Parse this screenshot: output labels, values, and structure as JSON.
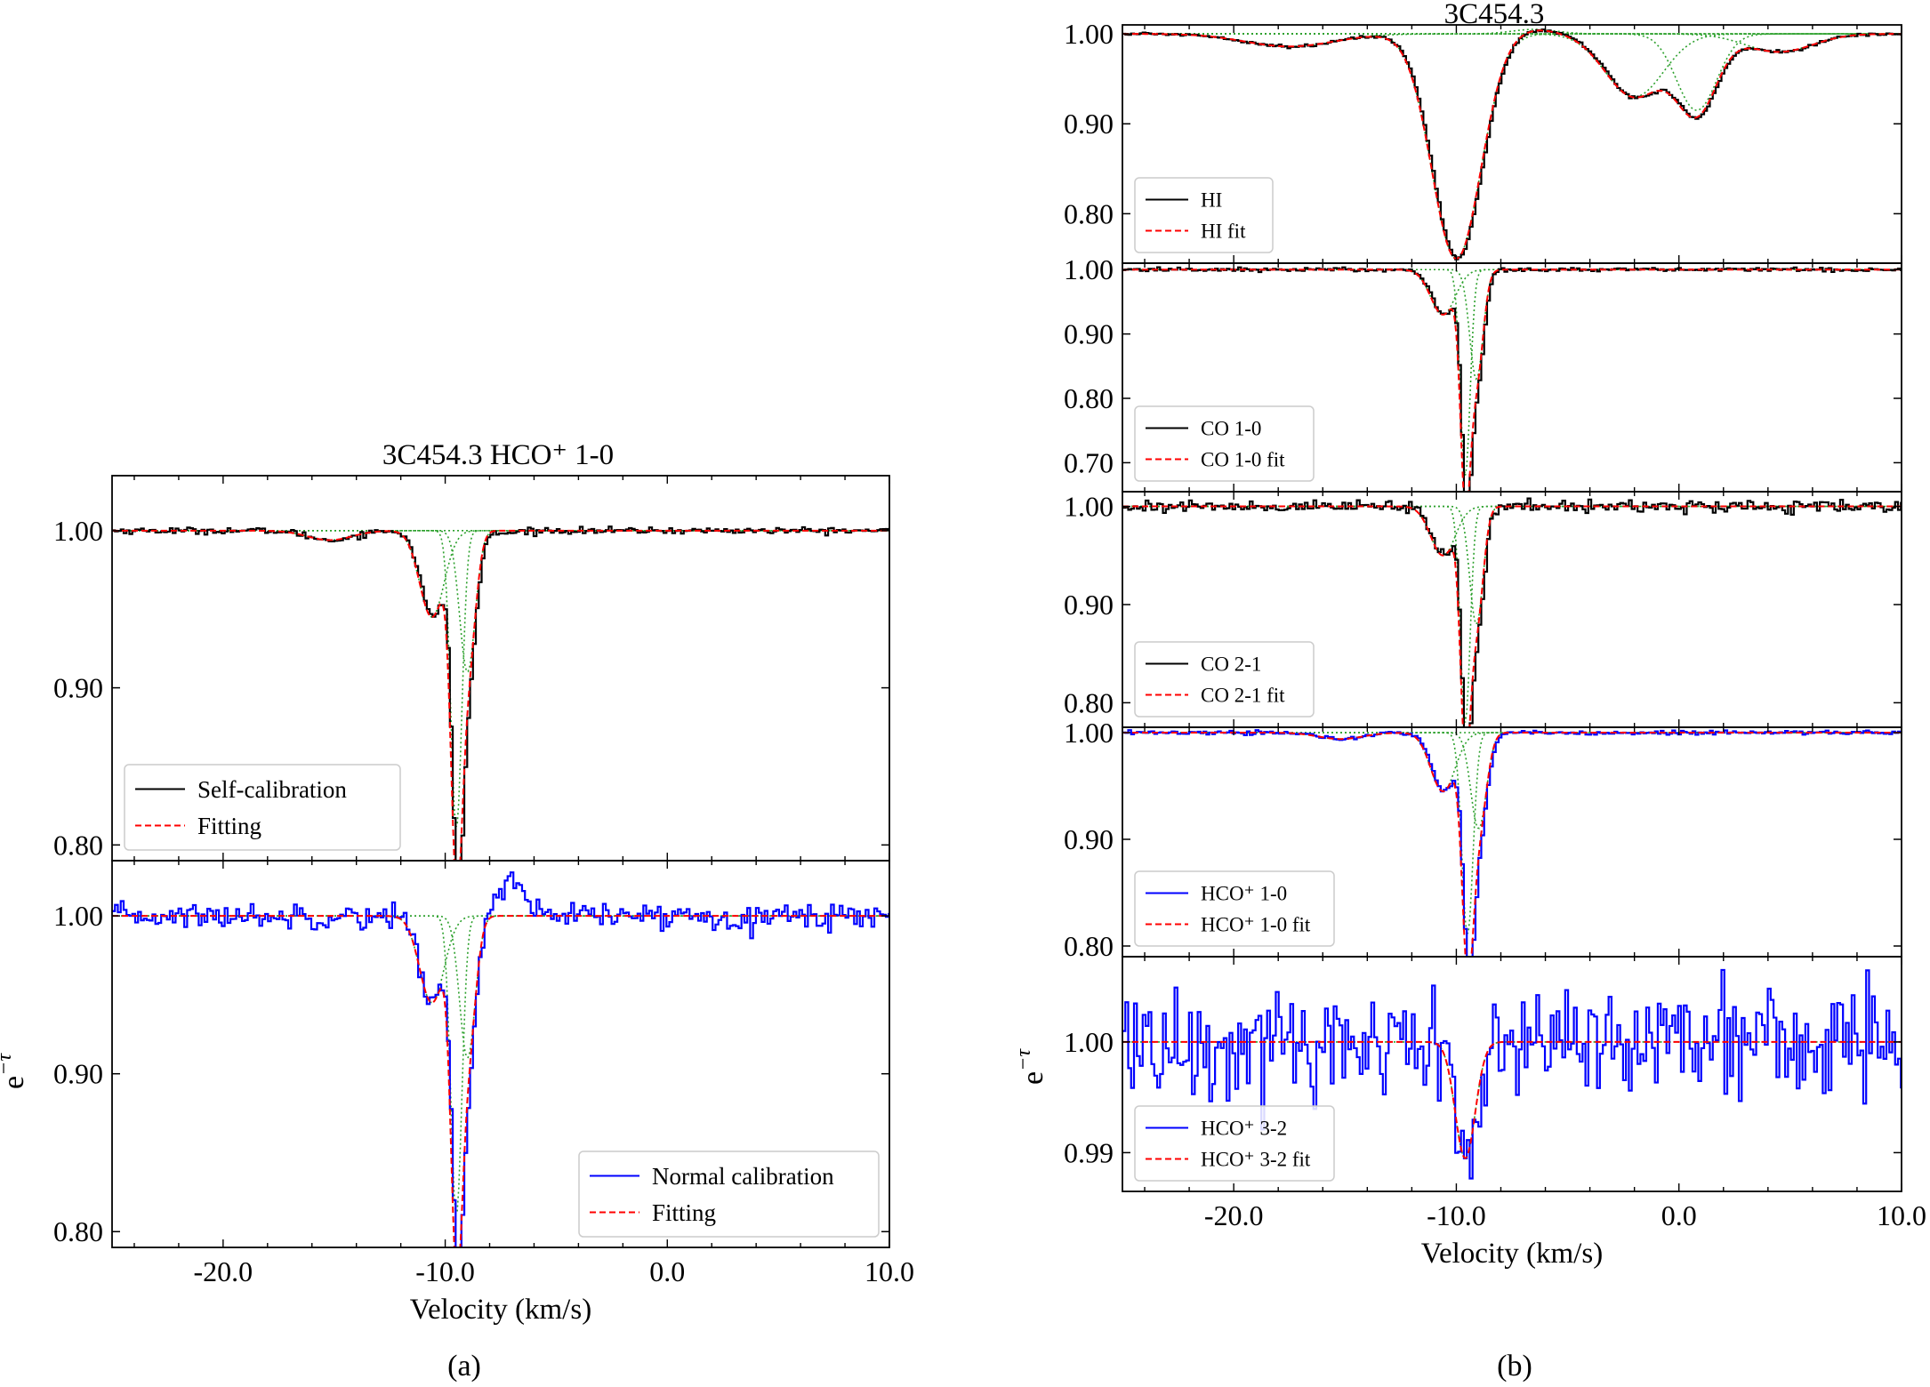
{
  "figure": {
    "panel_a": {
      "title": "3C454.3 HCO⁺ 1-0",
      "caption": "(a)",
      "xlabel": "Velocity (km/s)",
      "ylabel": "e⁻ᵗᵃᵘ",
      "ylabel_base": "e",
      "ylabel_sup": "−τ",
      "xticks": [
        "-20.0",
        "-10.0",
        "0.0",
        "10.0"
      ]
    },
    "panel_b": {
      "title": "3C454.3",
      "caption": "(b)",
      "xlabel": "Velocity (km/s)",
      "ylabel_base": "e",
      "ylabel_sup": "−τ",
      "xticks": [
        "-20.0",
        "-10.0",
        "0.0",
        "10.0"
      ]
    }
  },
  "colors": {
    "data_black": "#000000",
    "data_blue": "#0000ff",
    "fit_red": "#ff0000",
    "component_green": "#2ca02c"
  },
  "chart_data": [
    {
      "type": "line",
      "id": "a_self_cal",
      "xlim": [
        -25,
        10
      ],
      "ylim": [
        0.79,
        1.035
      ],
      "yticks": [
        "0.80",
        "0.90",
        "1.00"
      ],
      "ytick_values": [
        0.8,
        0.9,
        1.0
      ],
      "legend": [
        "Self-calibration",
        "Fitting"
      ],
      "legend_placement": "lower-left",
      "data_style": "steps",
      "data_color": "#000000",
      "components": [
        {
          "center": -15.2,
          "depth": 0.006,
          "sigma": 1.0
        },
        {
          "center": -10.6,
          "depth": 0.055,
          "sigma": 0.55
        },
        {
          "center": -9.5,
          "depth": 0.19,
          "sigma": 0.25
        },
        {
          "center": -9.0,
          "depth": 0.09,
          "sigma": 0.35
        }
      ],
      "noise": 0.001,
      "features": [
        {
          "center": -7.5,
          "amp": -0.002,
          "sigma": 0.5
        }
      ]
    },
    {
      "type": "line",
      "id": "a_normal_cal",
      "xlim": [
        -25,
        10
      ],
      "ylim": [
        0.79,
        1.035
      ],
      "yticks": [
        "0.80",
        "0.90",
        "1.00"
      ],
      "ytick_values": [
        0.8,
        0.9,
        1.0
      ],
      "legend": [
        "Normal calibration",
        "Fitting"
      ],
      "legend_placement": "lower-right",
      "data_style": "steps",
      "data_color": "#0000ff",
      "components": [
        {
          "center": -10.6,
          "depth": 0.055,
          "sigma": 0.55
        },
        {
          "center": -9.5,
          "depth": 0.19,
          "sigma": 0.25
        },
        {
          "center": -9.0,
          "depth": 0.09,
          "sigma": 0.35
        }
      ],
      "noise": 0.004,
      "features": [
        {
          "center": -7.2,
          "amp": 0.022,
          "sigma": 0.6
        }
      ]
    },
    {
      "type": "line",
      "id": "b_hi",
      "xlim": [
        -25,
        10
      ],
      "ylim": [
        0.745,
        1.01
      ],
      "yticks": [
        "0.80",
        "0.90",
        "1.00"
      ],
      "ytick_values": [
        0.8,
        0.9,
        1.0
      ],
      "legend": [
        "HI",
        "HI fit"
      ],
      "legend_placement": "lower-left",
      "data_style": "steps",
      "data_color": "#000000",
      "components": [
        {
          "center": -17.5,
          "depth": 0.014,
          "sigma": 2.0
        },
        {
          "center": -10.0,
          "depth": 0.25,
          "sigma": 1.1
        },
        {
          "center": -6.5,
          "depth": -0.005,
          "sigma": 1.0
        },
        {
          "center": -2.0,
          "depth": 0.07,
          "sigma": 1.3
        },
        {
          "center": 0.8,
          "depth": 0.085,
          "sigma": 0.9
        },
        {
          "center": 4.5,
          "depth": 0.02,
          "sigma": 1.5
        }
      ],
      "noise": 0.0008,
      "features": []
    },
    {
      "type": "line",
      "id": "b_co10",
      "xlim": [
        -25,
        10
      ],
      "ylim": [
        0.655,
        1.01
      ],
      "yticks": [
        "0.70",
        "0.80",
        "0.90",
        "1.00"
      ],
      "ytick_values": [
        0.7,
        0.8,
        0.9,
        1.0
      ],
      "legend": [
        "CO 1-0",
        "CO 1-0 fit"
      ],
      "legend_placement": "lower-left",
      "data_style": "steps",
      "data_color": "#000000",
      "components": [
        {
          "center": -10.6,
          "depth": 0.07,
          "sigma": 0.55
        },
        {
          "center": -9.6,
          "depth": 0.32,
          "sigma": 0.22
        },
        {
          "center": -9.1,
          "depth": 0.17,
          "sigma": 0.3
        }
      ],
      "noise": 0.0015,
      "features": []
    },
    {
      "type": "line",
      "id": "b_co21",
      "xlim": [
        -25,
        10
      ],
      "ylim": [
        0.775,
        1.015
      ],
      "yticks": [
        "0.80",
        "0.90",
        "1.00"
      ],
      "ytick_values": [
        0.8,
        0.9,
        1.0
      ],
      "legend": [
        "CO 2-1",
        "CO 2-1 fit"
      ],
      "legend_placement": "lower-left",
      "data_style": "steps",
      "data_color": "#000000",
      "components": [
        {
          "center": -10.6,
          "depth": 0.05,
          "sigma": 0.55
        },
        {
          "center": -9.6,
          "depth": 0.22,
          "sigma": 0.22
        },
        {
          "center": -9.1,
          "depth": 0.12,
          "sigma": 0.3
        }
      ],
      "noise": 0.003,
      "features": []
    },
    {
      "type": "line",
      "id": "b_hco10",
      "xlim": [
        -25,
        10
      ],
      "ylim": [
        0.79,
        1.005
      ],
      "yticks": [
        "0.80",
        "0.90",
        "1.00"
      ],
      "ytick_values": [
        0.8,
        0.9,
        1.0
      ],
      "legend": [
        "HCO⁺ 1-0",
        "HCO⁺ 1-0 fit"
      ],
      "legend_placement": "lower-left",
      "data_style": "steps",
      "data_color": "#0000ff",
      "components": [
        {
          "center": -15.2,
          "depth": 0.006,
          "sigma": 1.0
        },
        {
          "center": -10.6,
          "depth": 0.055,
          "sigma": 0.55
        },
        {
          "center": -9.5,
          "depth": 0.19,
          "sigma": 0.25
        },
        {
          "center": -9.0,
          "depth": 0.09,
          "sigma": 0.35
        }
      ],
      "noise": 0.001,
      "features": []
    },
    {
      "type": "line",
      "id": "b_hco32",
      "xlim": [
        -25,
        10
      ],
      "ylim": [
        0.9865,
        1.0077
      ],
      "yticks": [
        "0.99",
        "1.00"
      ],
      "ytick_values": [
        0.99,
        1.0
      ],
      "legend": [
        "HCO⁺ 3-2",
        "HCO⁺ 3-2 fit"
      ],
      "legend_placement": "lower-left",
      "data_style": "steps",
      "data_color": "#0000ff",
      "components": [
        {
          "center": -9.6,
          "depth": 0.0105,
          "sigma": 0.45
        }
      ],
      "noise": 0.0028,
      "features": []
    }
  ]
}
